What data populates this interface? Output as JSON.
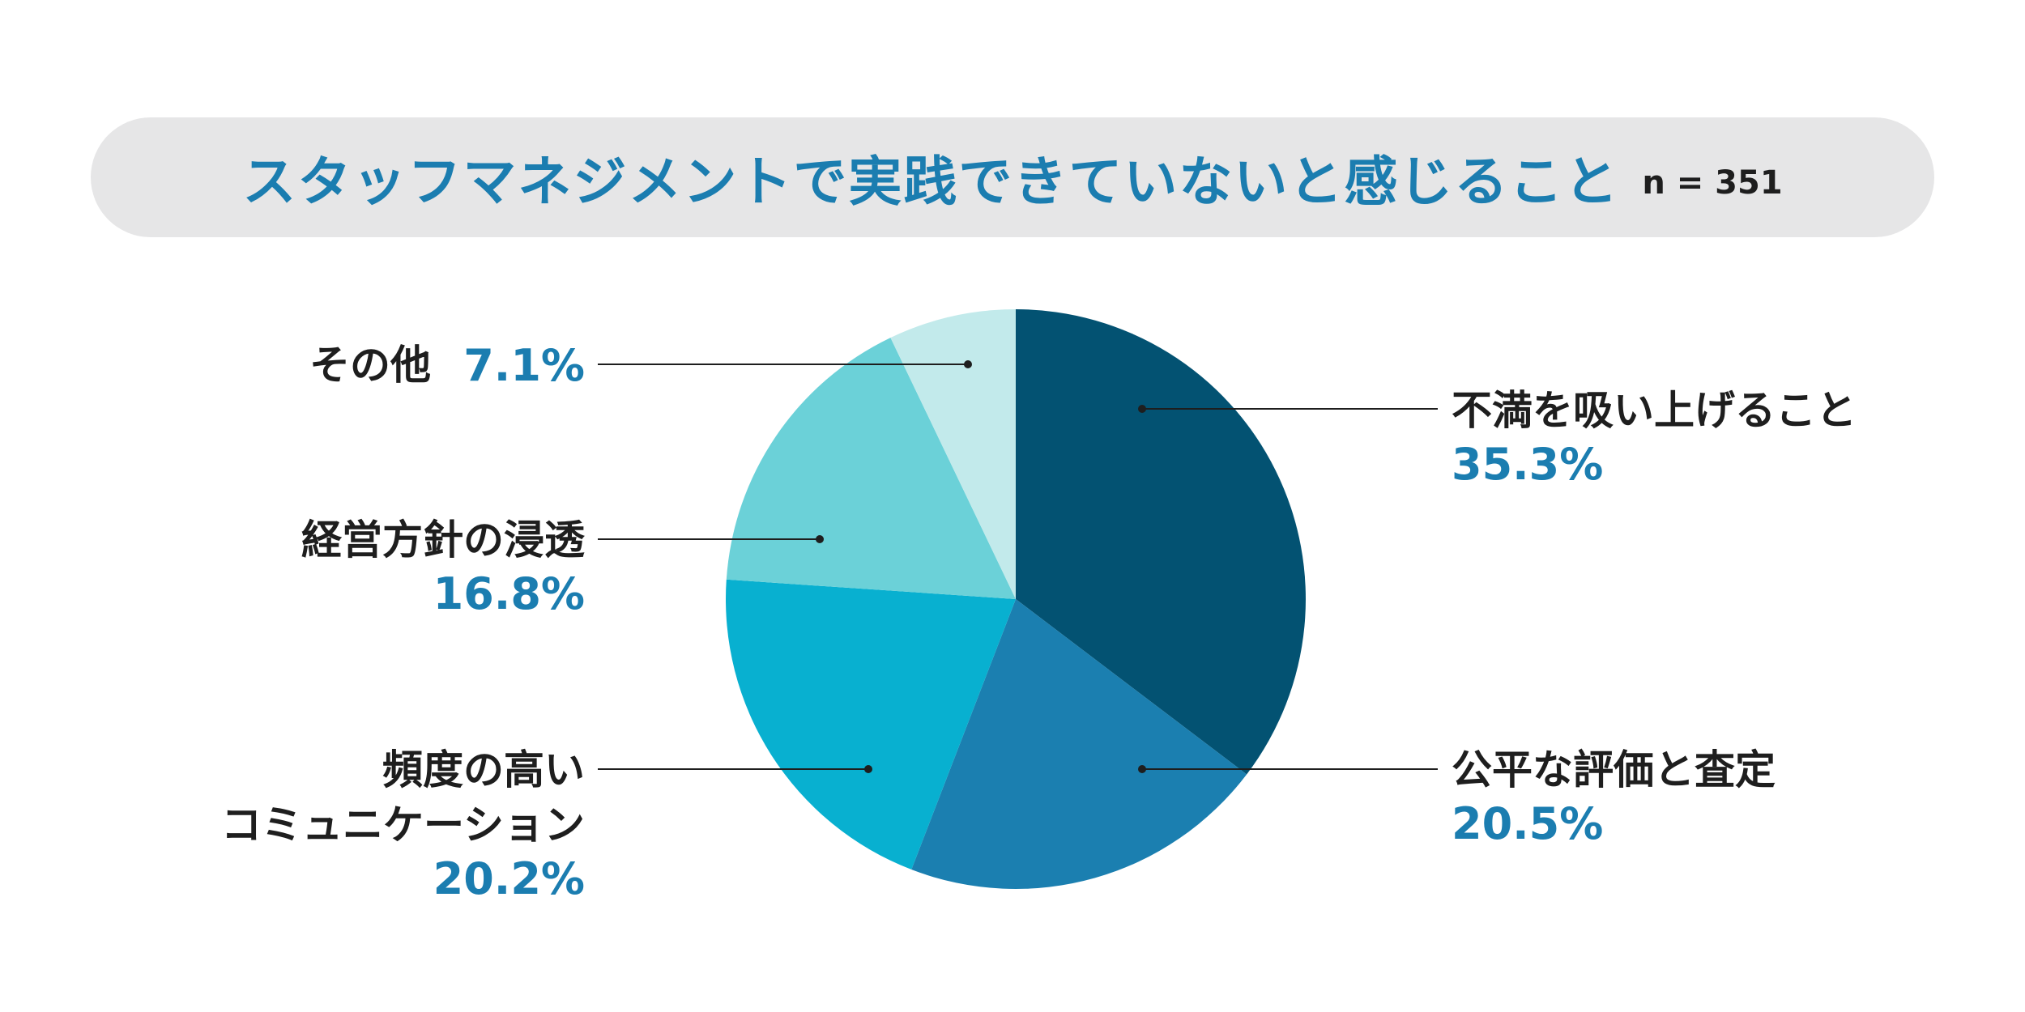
{
  "header": {
    "title": "スタッフマネジメントで実践できていないと感じること",
    "sample": "n = 351"
  },
  "chart_data": {
    "type": "pie",
    "title": "スタッフマネジメントで実践できていないと感じること",
    "note": "n = 351",
    "unit": "%",
    "slices": [
      {
        "label": "不満を吸い上げること",
        "value": 35.3,
        "display": "35.3%",
        "color": "#035272"
      },
      {
        "label": "公平な評価と査定",
        "value": 20.5,
        "display": "20.5%",
        "color": "#1b7fb0"
      },
      {
        "label": "頻度の高いコミュニケーション",
        "lines": [
          "頻度の高い",
          "コミュニケーション"
        ],
        "value": 20.2,
        "display": "20.2%",
        "color": "#08b0d0"
      },
      {
        "label": "経営方針の浸透",
        "value": 16.8,
        "display": "16.8%",
        "color": "#6bd1d8"
      },
      {
        "label": "その他",
        "value": 7.1,
        "display": "7.1%",
        "color": "#c2eaeb"
      }
    ],
    "start": "12 o'clock",
    "direction": "clockwise"
  }
}
